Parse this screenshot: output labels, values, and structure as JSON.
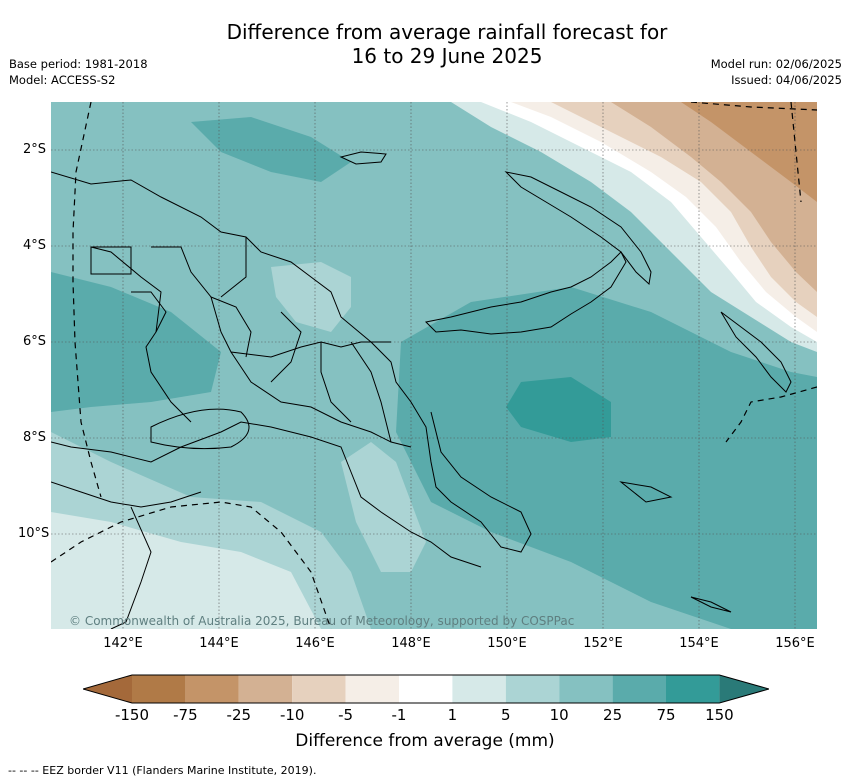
{
  "title_line1": "Difference from average rainfall forecast for",
  "title_line2": "16 to 29 June 2025",
  "meta_left": [
    "Base period: 1981-2018",
    "Model: ACCESS-S2"
  ],
  "meta_right": [
    "Model run: 02/06/2025",
    "Issued: 04/06/2025"
  ],
  "lat_labels": [
    "2°S",
    "4°S",
    "6°S",
    "8°S",
    "10°S"
  ],
  "lon_labels": [
    "142°E",
    "144°E",
    "146°E",
    "148°E",
    "150°E",
    "152°E",
    "154°E",
    "156°E"
  ],
  "credit": "© Commonwealth of Australia 2025, Bureau of Meteorology, supported by COSPPac",
  "colorbar": {
    "labels": [
      "-150",
      "-75",
      "-25",
      "-10",
      "-5",
      "-1",
      "1",
      "5",
      "10",
      "25",
      "75",
      "150"
    ],
    "colors": [
      "#a4693a",
      "#b07a47",
      "#c49468",
      "#d3b193",
      "#e6d1be",
      "#f5eee7",
      "#ffffff",
      "#d6e9e8",
      "#abd4d4",
      "#85c1c1",
      "#5aabab",
      "#339b98",
      "#2a7a78"
    ],
    "title": "Difference from average (mm)"
  },
  "legend_note": "-- -- -- EEZ border V11 (Flanders Marine Institute, 2019)."
}
